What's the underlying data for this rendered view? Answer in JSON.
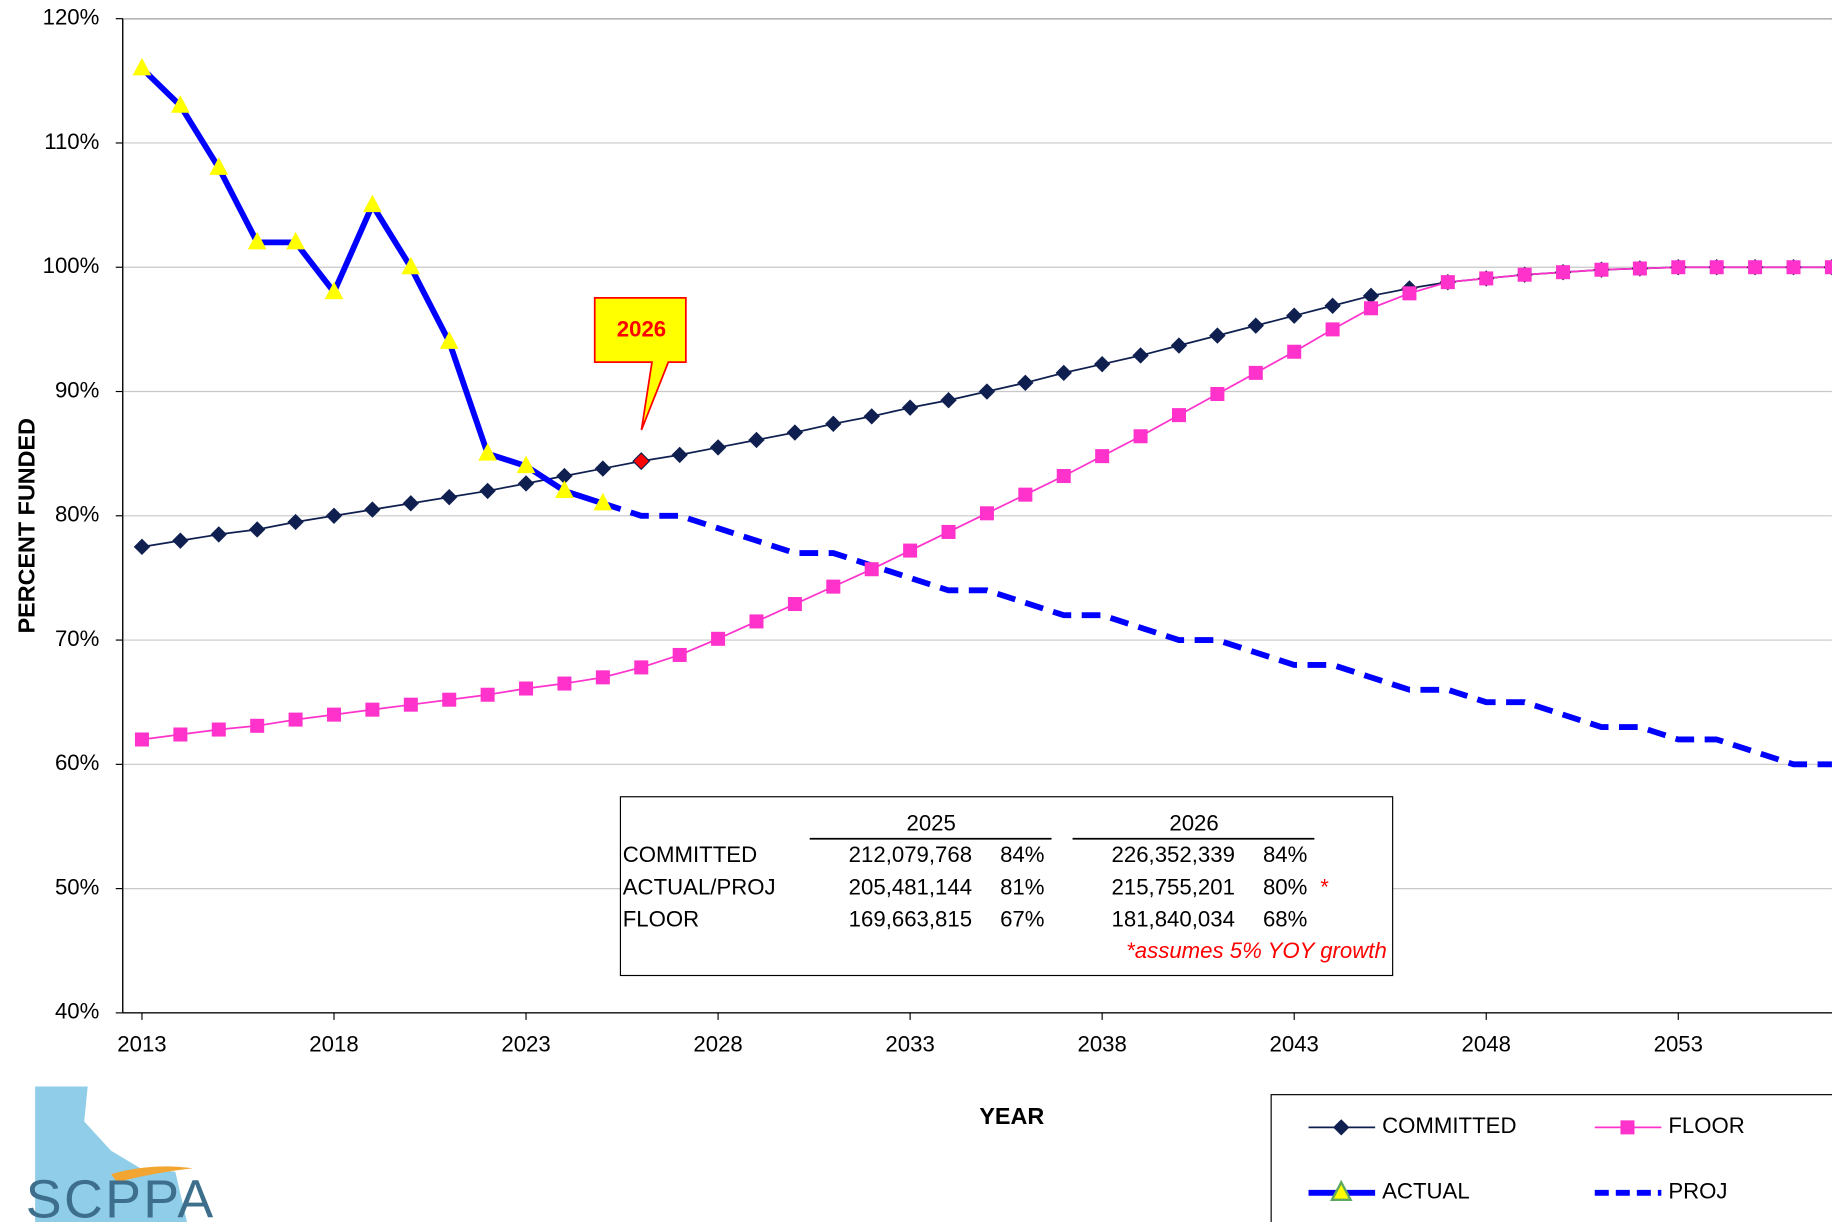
{
  "chart_data": {
    "type": "line",
    "xlabel": "YEAR",
    "ylabel": "PERCENT FUNDED",
    "xlim": [
      2012.5,
      2057
    ],
    "xticks": [
      2013,
      2018,
      2023,
      2028,
      2033,
      2038,
      2043,
      2048,
      2053
    ],
    "ylim": [
      40,
      120
    ],
    "yticks": [
      {
        "value": 40,
        "label": "40%"
      },
      {
        "value": 50,
        "label": "50%"
      },
      {
        "value": 60,
        "label": "60%"
      },
      {
        "value": 70,
        "label": "70%"
      },
      {
        "value": 80,
        "label": "80%"
      },
      {
        "value": 90,
        "label": "90%"
      },
      {
        "value": 100,
        "label": "100%"
      },
      {
        "value": 110,
        "label": "110%"
      },
      {
        "value": 120,
        "label": "120%"
      }
    ],
    "grid": true,
    "series": [
      {
        "name": "COMMITTED",
        "color": "#0f1f4f",
        "marker": "diamond",
        "width": 1.5,
        "dash": false,
        "x": [
          2013,
          2014,
          2015,
          2016,
          2017,
          2018,
          2019,
          2020,
          2021,
          2022,
          2023,
          2024,
          2025,
          2026,
          2027,
          2028,
          2029,
          2030,
          2031,
          2032,
          2033,
          2034,
          2035,
          2036,
          2037,
          2038,
          2039,
          2040,
          2041,
          2042,
          2043,
          2044,
          2045,
          2046,
          2047,
          2048,
          2049,
          2050,
          2051,
          2052,
          2053,
          2054,
          2055,
          2056,
          2057
        ],
        "values": [
          77.5,
          78,
          78.5,
          78.9,
          79.5,
          80,
          80.5,
          81,
          81.5,
          82,
          82.6,
          83.2,
          83.8,
          84.4,
          84.9,
          85.5,
          86.1,
          86.7,
          87.4,
          88,
          88.7,
          89.3,
          90,
          90.7,
          91.5,
          92.2,
          92.9,
          93.7,
          94.5,
          95.3,
          96.1,
          96.9,
          97.7,
          98.3,
          98.8,
          99.1,
          99.4,
          99.6,
          99.8,
          99.9,
          100,
          100,
          100,
          100,
          100
        ]
      },
      {
        "name": "FLOOR",
        "color": "#ff33cc",
        "marker": "square",
        "width": 1.5,
        "dash": false,
        "x": [
          2013,
          2014,
          2015,
          2016,
          2017,
          2018,
          2019,
          2020,
          2021,
          2022,
          2023,
          2024,
          2025,
          2026,
          2027,
          2028,
          2029,
          2030,
          2031,
          2032,
          2033,
          2034,
          2035,
          2036,
          2037,
          2038,
          2039,
          2040,
          2041,
          2042,
          2043,
          2044,
          2045,
          2046,
          2047,
          2048,
          2049,
          2050,
          2051,
          2052,
          2053,
          2054,
          2055,
          2056,
          2057
        ],
        "values": [
          62,
          62.4,
          62.8,
          63.1,
          63.6,
          64,
          64.4,
          64.8,
          65.2,
          65.6,
          66.1,
          66.5,
          67,
          67.8,
          68.8,
          70.1,
          71.5,
          72.9,
          74.3,
          75.7,
          77.2,
          78.7,
          80.2,
          81.7,
          83.2,
          84.8,
          86.4,
          88.1,
          89.8,
          91.5,
          93.2,
          95,
          96.7,
          97.9,
          98.8,
          99.1,
          99.4,
          99.6,
          99.8,
          99.9,
          100,
          100,
          100,
          100,
          100
        ]
      },
      {
        "name": "ACTUAL",
        "color": "#0000ff",
        "marker": "triangle",
        "width": 5,
        "dash": false,
        "x": [
          2013,
          2014,
          2015,
          2016,
          2017,
          2018,
          2019,
          2020,
          2021,
          2022,
          2023,
          2024,
          2025
        ],
        "values": [
          116,
          113,
          108,
          102,
          102,
          98,
          105,
          100,
          94,
          85,
          84,
          82,
          81
        ]
      },
      {
        "name": "PROJ",
        "color": "#0000ff",
        "marker": "none",
        "width": 5,
        "dash": true,
        "x": [
          2025,
          2026,
          2027,
          2028,
          2029,
          2030,
          2031,
          2032,
          2033,
          2034,
          2035,
          2036,
          2037,
          2038,
          2039,
          2040,
          2041,
          2042,
          2043,
          2044,
          2045,
          2046,
          2047,
          2048,
          2049,
          2050,
          2051,
          2052,
          2053,
          2054,
          2055,
          2056,
          2057
        ],
        "values": [
          81,
          80,
          80,
          79,
          78,
          77,
          77,
          76,
          75,
          74,
          74,
          73,
          72,
          72,
          71,
          70,
          70,
          69,
          68,
          68,
          67,
          66,
          66,
          65,
          65,
          64,
          63,
          63,
          62,
          62,
          61,
          60,
          60
        ]
      }
    ],
    "callout": {
      "label": "2026",
      "x": 2026
    },
    "table": {
      "headers": [
        "2025",
        "2026"
      ],
      "rows": [
        [
          "COMMITTED",
          "212,079,768",
          "84%",
          "226,352,339",
          "84%",
          ""
        ],
        [
          "ACTUAL/PROJ",
          "205,481,144",
          "81%",
          "215,755,201",
          "80%",
          "*"
        ],
        [
          "FLOOR",
          "169,663,815",
          "67%",
          "181,840,034",
          "68%",
          ""
        ]
      ],
      "note": "*assumes 5% YOY growth"
    },
    "logo": "SCPPA"
  }
}
